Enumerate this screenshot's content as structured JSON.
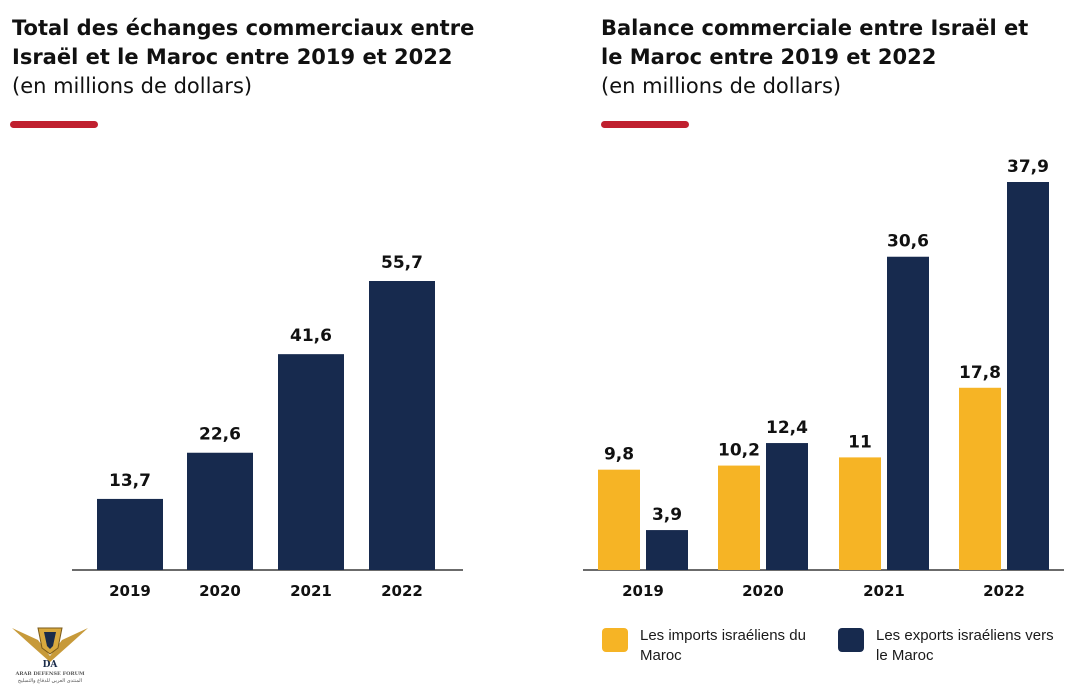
{
  "colors": {
    "navy": "#172a4e",
    "yellow": "#f6b425",
    "accent": "#c0202f",
    "axis": "#3a3a3a"
  },
  "left_chart": {
    "title_line1": "Total des échanges commerciaux entre",
    "title_line2": "Israël et le Maroc entre 2019 et 2022",
    "subtitle": "(en millions de dollars)"
  },
  "right_chart": {
    "title_line1": "Balance commerciale entre Israël et",
    "title_line2": "le Maroc entre 2019 et 2022",
    "subtitle": "(en millions de dollars)"
  },
  "legend": {
    "imports_label": "Les imports israéliens du Maroc",
    "exports_label": "Les exports israéliens vers le Maroc"
  },
  "logo": {
    "mark": "DA",
    "name": "ARAB DEFENSE FORUM",
    "arabic": "المنتدى العربي للدفاع والتسليح"
  },
  "chart_data": [
    {
      "type": "bar",
      "title": "Total des échanges commerciaux entre Israël et le Maroc entre 2019 et 2022 (en millions de dollars)",
      "categories": [
        "2019",
        "2020",
        "2021",
        "2022"
      ],
      "values": [
        13.7,
        22.6,
        41.6,
        55.7
      ],
      "labels": [
        "13,7",
        "22,6",
        "41,6",
        "55,7"
      ],
      "ylim": [
        0,
        60
      ],
      "grid": false
    },
    {
      "type": "bar",
      "title": "Balance commerciale entre Israël et le Maroc entre 2019 et 2022 (en millions de dollars)",
      "categories": [
        "2019",
        "2020",
        "2021",
        "2022"
      ],
      "series": [
        {
          "name": "Les imports israéliens du Maroc",
          "values": [
            9.8,
            10.2,
            11,
            17.8
          ],
          "labels": [
            "9,8",
            "10,2",
            "11",
            "17,8"
          ],
          "color": "#f6b425"
        },
        {
          "name": "Les exports israéliens vers le Maroc",
          "values": [
            3.9,
            12.4,
            30.6,
            37.9
          ],
          "labels": [
            "3,9",
            "12,4",
            "30,6",
            "37,9"
          ],
          "color": "#172a4e"
        }
      ],
      "ylim": [
        0,
        40
      ],
      "grid": false,
      "legend": "bottom"
    }
  ]
}
